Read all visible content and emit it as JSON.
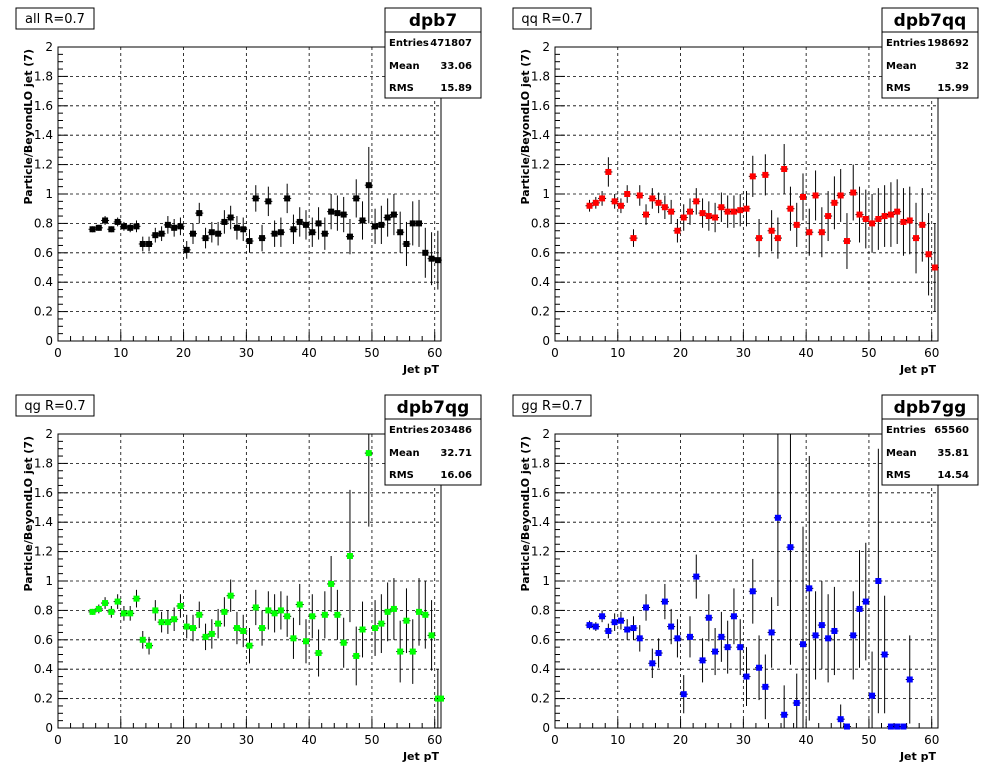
{
  "chart_data": [
    {
      "type": "scatter",
      "title": "all R=0.7",
      "stats": {
        "name": "dpb7",
        "entries_label": "Entries",
        "entries": "471807",
        "mean_label": "Mean",
        "mean": "33.06",
        "rms_label": "RMS",
        "rms": "15.89"
      },
      "xlabel": "Jet pT",
      "ylabel": "Particle/BeyondLO jet (7)",
      "xlim": [
        0,
        61
      ],
      "ylim": [
        0,
        2
      ],
      "xticks": [
        "0",
        "10",
        "20",
        "30",
        "40",
        "50",
        "60"
      ],
      "yticks": [
        "0",
        "0.2",
        "0.4",
        "0.6",
        "0.8",
        "1",
        "1.2",
        "1.4",
        "1.6",
        "1.8",
        "2"
      ],
      "grid": true,
      "color": "#000000",
      "x": [
        5.5,
        6.5,
        7.5,
        8.5,
        9.5,
        10.5,
        11.5,
        12.5,
        13.5,
        14.5,
        15.5,
        16.5,
        17.5,
        18.5,
        19.5,
        20.5,
        21.5,
        22.5,
        23.5,
        24.5,
        25.5,
        26.5,
        27.5,
        28.5,
        29.5,
        30.5,
        31.5,
        32.5,
        33.5,
        34.5,
        35.5,
        36.5,
        37.5,
        38.5,
        39.5,
        40.5,
        41.5,
        42.5,
        43.5,
        44.5,
        45.5,
        46.5,
        47.5,
        48.5,
        49.5,
        50.5,
        51.5,
        52.5,
        53.5,
        54.5,
        55.5,
        56.5,
        57.5,
        58.5,
        59.5,
        60.5
      ],
      "y": [
        0.76,
        0.77,
        0.82,
        0.76,
        0.81,
        0.78,
        0.77,
        0.78,
        0.66,
        0.66,
        0.72,
        0.73,
        0.79,
        0.77,
        0.78,
        0.62,
        0.73,
        0.87,
        0.7,
        0.74,
        0.73,
        0.81,
        0.84,
        0.77,
        0.76,
        0.68,
        0.97,
        0.7,
        0.95,
        0.73,
        0.74,
        0.97,
        0.76,
        0.81,
        0.79,
        0.74,
        0.8,
        0.73,
        0.88,
        0.87,
        0.86,
        0.71,
        0.97,
        0.82,
        1.06,
        0.78,
        0.79,
        0.84,
        0.86,
        0.74,
        0.66,
        0.8,
        0.8,
        0.6,
        0.56,
        0.55
      ],
      "err": [
        0.02,
        0.02,
        0.03,
        0.02,
        0.03,
        0.03,
        0.03,
        0.04,
        0.05,
        0.05,
        0.05,
        0.05,
        0.06,
        0.06,
        0.06,
        0.06,
        0.07,
        0.07,
        0.07,
        0.07,
        0.08,
        0.08,
        0.08,
        0.08,
        0.08,
        0.08,
        0.09,
        0.09,
        0.1,
        0.09,
        0.1,
        0.1,
        0.1,
        0.1,
        0.1,
        0.1,
        0.11,
        0.11,
        0.12,
        0.12,
        0.12,
        0.12,
        0.13,
        0.13,
        0.26,
        0.12,
        0.13,
        0.13,
        0.14,
        0.14,
        0.15,
        0.15,
        0.16,
        0.17,
        0.18,
        0.2
      ]
    },
    {
      "type": "scatter",
      "title": "qq R=0.7",
      "stats": {
        "name": "dpb7qq",
        "entries_label": "Entries",
        "entries": "198692",
        "mean_label": "Mean",
        "mean": "32",
        "rms_label": "RMS",
        "rms": "15.99"
      },
      "xlabel": "Jet pT",
      "ylabel": "Particle/BeyondLO jet (7)",
      "xlim": [
        0,
        61
      ],
      "ylim": [
        0,
        2
      ],
      "xticks": [
        "0",
        "10",
        "20",
        "30",
        "40",
        "50",
        "60"
      ],
      "yticks": [
        "0",
        "0.2",
        "0.4",
        "0.6",
        "0.8",
        "1",
        "1.2",
        "1.4",
        "1.6",
        "1.8",
        "2"
      ],
      "grid": true,
      "color": "#ff0000",
      "x": [
        5.5,
        6.5,
        7.5,
        8.5,
        9.5,
        10.5,
        11.5,
        12.5,
        13.5,
        14.5,
        15.5,
        16.5,
        17.5,
        18.5,
        19.5,
        20.5,
        21.5,
        22.5,
        23.5,
        24.5,
        25.5,
        26.5,
        27.5,
        28.5,
        29.5,
        30.5,
        31.5,
        32.5,
        33.5,
        34.5,
        35.5,
        36.5,
        37.5,
        38.5,
        39.5,
        40.5,
        41.5,
        42.5,
        43.5,
        44.5,
        45.5,
        46.5,
        47.5,
        48.5,
        49.5,
        50.5,
        51.5,
        52.5,
        53.5,
        54.5,
        55.5,
        56.5,
        57.5,
        58.5,
        59.5,
        60.5
      ],
      "y": [
        0.92,
        0.94,
        0.97,
        1.15,
        0.95,
        0.92,
        1.0,
        0.7,
        0.99,
        0.86,
        0.97,
        0.94,
        0.91,
        0.88,
        0.75,
        0.84,
        0.88,
        0.95,
        0.87,
        0.85,
        0.84,
        0.91,
        0.88,
        0.88,
        0.89,
        0.9,
        1.12,
        0.7,
        1.13,
        0.75,
        0.7,
        1.17,
        0.9,
        0.79,
        0.98,
        0.74,
        0.99,
        0.74,
        0.85,
        0.94,
        0.99,
        0.68,
        1.01,
        0.86,
        0.83,
        0.8,
        0.83,
        0.85,
        0.86,
        0.88,
        0.81,
        0.82,
        0.7,
        0.79,
        0.59,
        0.5
      ],
      "err": [
        0.04,
        0.04,
        0.05,
        0.1,
        0.05,
        0.05,
        0.06,
        0.06,
        0.07,
        0.07,
        0.07,
        0.07,
        0.08,
        0.08,
        0.08,
        0.09,
        0.09,
        0.09,
        0.1,
        0.1,
        0.1,
        0.1,
        0.11,
        0.11,
        0.11,
        0.12,
        0.14,
        0.13,
        0.14,
        0.14,
        0.14,
        0.17,
        0.15,
        0.15,
        0.16,
        0.16,
        0.17,
        0.17,
        0.17,
        0.18,
        0.18,
        0.19,
        0.19,
        0.19,
        0.2,
        0.2,
        0.21,
        0.21,
        0.22,
        0.22,
        0.23,
        0.23,
        0.24,
        0.25,
        0.28,
        0.3
      ]
    },
    {
      "type": "scatter",
      "title": "qg R=0.7",
      "stats": {
        "name": "dpb7qg",
        "entries_label": "Entries",
        "entries": "203486",
        "mean_label": "Mean",
        "mean": "32.71",
        "rms_label": "RMS",
        "rms": "16.06"
      },
      "xlabel": "Jet pT",
      "ylabel": "Particle/BeyondLO jet (7)",
      "xlim": [
        0,
        61
      ],
      "ylim": [
        0,
        2
      ],
      "xticks": [
        "0",
        "10",
        "20",
        "30",
        "40",
        "50",
        "60"
      ],
      "yticks": [
        "0",
        "0.2",
        "0.4",
        "0.6",
        "0.8",
        "1",
        "1.2",
        "1.4",
        "1.6",
        "1.8",
        "2"
      ],
      "grid": true,
      "color": "#00ff00",
      "x": [
        5.5,
        6.5,
        7.5,
        8.5,
        9.5,
        10.5,
        11.5,
        12.5,
        13.5,
        14.5,
        15.5,
        16.5,
        17.5,
        18.5,
        19.5,
        20.5,
        21.5,
        22.5,
        23.5,
        24.5,
        25.5,
        26.5,
        27.5,
        28.5,
        29.5,
        30.5,
        31.5,
        32.5,
        33.5,
        34.5,
        35.5,
        36.5,
        37.5,
        38.5,
        39.5,
        40.5,
        41.5,
        42.5,
        43.5,
        44.5,
        45.5,
        46.5,
        47.5,
        48.5,
        49.5,
        50.5,
        51.5,
        52.5,
        53.5,
        54.5,
        55.5,
        56.5,
        57.5,
        58.5,
        59.5,
        60.5,
        61.0
      ],
      "y": [
        0.79,
        0.81,
        0.85,
        0.79,
        0.86,
        0.78,
        0.78,
        0.88,
        0.6,
        0.56,
        0.8,
        0.72,
        0.72,
        0.74,
        0.83,
        0.69,
        0.68,
        0.77,
        0.62,
        0.64,
        0.71,
        0.79,
        0.9,
        0.68,
        0.66,
        0.56,
        0.82,
        0.68,
        0.8,
        0.78,
        0.8,
        0.76,
        0.61,
        0.84,
        0.59,
        0.76,
        0.51,
        0.77,
        0.98,
        0.77,
        0.58,
        1.17,
        0.49,
        0.67,
        1.87,
        0.68,
        0.71,
        0.79,
        0.81,
        0.52,
        0.73,
        0.52,
        0.79,
        0.77,
        0.63,
        0.2,
        0.2
      ],
      "err": [
        0.02,
        0.03,
        0.04,
        0.04,
        0.05,
        0.05,
        0.05,
        0.06,
        0.06,
        0.06,
        0.07,
        0.07,
        0.08,
        0.08,
        0.08,
        0.08,
        0.09,
        0.09,
        0.09,
        0.1,
        0.1,
        0.1,
        0.11,
        0.11,
        0.11,
        0.12,
        0.12,
        0.12,
        0.13,
        0.13,
        0.13,
        0.14,
        0.14,
        0.14,
        0.15,
        0.15,
        0.16,
        0.16,
        0.19,
        0.17,
        0.17,
        0.45,
        0.2,
        0.19,
        0.5,
        0.19,
        0.2,
        0.2,
        0.21,
        0.21,
        0.22,
        0.22,
        0.23,
        0.23,
        0.24,
        0.2,
        0.1
      ]
    },
    {
      "type": "scatter",
      "title": "gg R=0.7",
      "stats": {
        "name": "dpb7gg",
        "entries_label": "Entries",
        "entries": "65560",
        "mean_label": "Mean",
        "mean": "35.81",
        "rms_label": "RMS",
        "rms": "14.54"
      },
      "xlabel": "Jet pT",
      "ylabel": "Particle/BeyondLO jet (7)",
      "xlim": [
        0,
        61
      ],
      "ylim": [
        0,
        2
      ],
      "xticks": [
        "0",
        "10",
        "20",
        "30",
        "40",
        "50",
        "60"
      ],
      "yticks": [
        "0",
        "0.2",
        "0.4",
        "0.6",
        "0.8",
        "1",
        "1.2",
        "1.4",
        "1.6",
        "1.8",
        "2"
      ],
      "grid": true,
      "color": "#0000ff",
      "x": [
        5.5,
        6.5,
        7.5,
        8.5,
        9.5,
        10.5,
        11.5,
        12.5,
        13.5,
        14.5,
        15.5,
        16.5,
        17.5,
        18.5,
        19.5,
        20.5,
        21.5,
        22.5,
        23.5,
        24.5,
        25.5,
        26.5,
        27.5,
        28.5,
        29.5,
        30.5,
        31.5,
        32.5,
        33.5,
        34.5,
        35.5,
        36.5,
        37.5,
        38.5,
        39.5,
        40.5,
        41.5,
        42.5,
        43.5,
        44.5,
        45.5,
        46.5,
        47.5,
        48.5,
        49.5,
        50.5,
        51.5,
        52.5,
        53.5,
        54.5,
        55.5,
        56.5
      ],
      "y": [
        0.7,
        0.69,
        0.76,
        0.66,
        0.72,
        0.73,
        0.67,
        0.68,
        0.61,
        0.82,
        0.44,
        0.51,
        0.86,
        0.69,
        0.61,
        0.23,
        0.62,
        1.03,
        0.46,
        0.75,
        0.52,
        0.62,
        0.55,
        0.76,
        0.55,
        0.35,
        0.93,
        0.41,
        0.28,
        0.65,
        1.43,
        0.09,
        1.23,
        0.17,
        0.57,
        0.95,
        0.63,
        0.7,
        0.61,
        0.66,
        0.06,
        0.01,
        0.63,
        0.81,
        0.86,
        0.22,
        1.0,
        0.5,
        0.01,
        0.01,
        0.01,
        0.33
      ],
      "err": [
        0.03,
        0.03,
        0.04,
        0.05,
        0.06,
        0.06,
        0.07,
        0.08,
        0.09,
        0.09,
        0.1,
        0.1,
        0.12,
        0.12,
        0.13,
        0.13,
        0.14,
        0.15,
        0.15,
        0.16,
        0.16,
        0.17,
        0.18,
        0.19,
        0.19,
        0.2,
        0.22,
        0.22,
        0.22,
        0.24,
        0.6,
        0.2,
        0.8,
        0.2,
        0.8,
        0.9,
        0.3,
        0.3,
        0.3,
        0.3,
        0.1,
        0.01,
        0.3,
        0.4,
        0.4,
        0.3,
        0.9,
        0.4,
        0.01,
        0.01,
        0.01,
        0.3
      ]
    }
  ]
}
